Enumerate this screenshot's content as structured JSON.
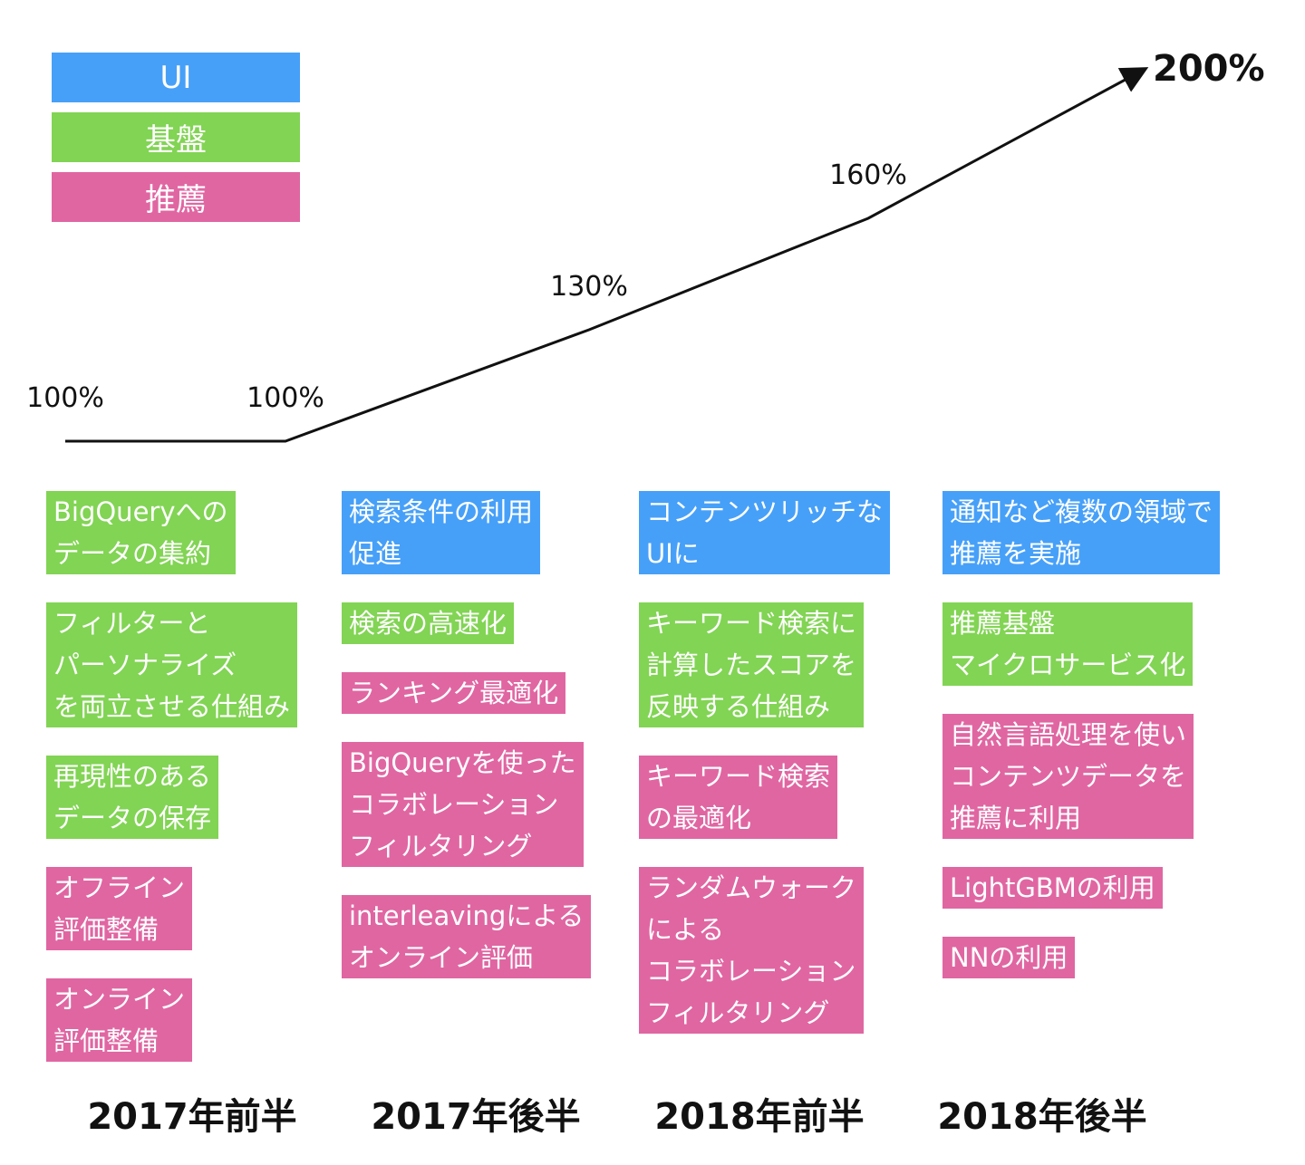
{
  "legend": [
    {
      "label": "UI",
      "color": "#47a0f8"
    },
    {
      "label": "基盤",
      "color": "#82d454"
    },
    {
      "label": "推薦",
      "color": "#e066a2"
    }
  ],
  "growth": {
    "type": "line",
    "values": [
      100,
      100,
      130,
      160,
      200
    ],
    "value_labels": [
      "100%",
      "100%",
      "130%",
      "160%",
      "200%"
    ]
  },
  "columns": [
    {
      "label": "2017年前半",
      "items": [
        {
          "lines": [
            "BigQueryへの",
            "データの集約"
          ],
          "color": "#82d454"
        },
        {
          "lines": [
            "フィルターと",
            "パーソナライズ",
            "を両立させる仕組み"
          ],
          "color": "#82d454"
        },
        {
          "lines": [
            "再現性のある",
            "データの保存"
          ],
          "color": "#82d454"
        },
        {
          "lines": [
            "オフライン",
            "評価整備"
          ],
          "color": "#e066a2"
        },
        {
          "lines": [
            "オンライン",
            "評価整備"
          ],
          "color": "#e066a2"
        }
      ]
    },
    {
      "label": "2017年後半",
      "items": [
        {
          "lines": [
            "検索条件の利用",
            "促進"
          ],
          "color": "#47a0f8"
        },
        {
          "lines": [
            "検索の高速化"
          ],
          "color": "#82d454"
        },
        {
          "lines": [
            "ランキング最適化"
          ],
          "color": "#e066a2"
        },
        {
          "lines": [
            "BigQueryを使った",
            "コラボレーション",
            "フィルタリング"
          ],
          "color": "#e066a2"
        },
        {
          "lines": [
            "interleavingによる",
            "オンライン評価"
          ],
          "color": "#e066a2"
        }
      ]
    },
    {
      "label": "2018年前半",
      "items": [
        {
          "lines": [
            "コンテンツリッチな",
            "UIに"
          ],
          "color": "#47a0f8"
        },
        {
          "lines": [
            "キーワード検索に",
            "計算したスコアを",
            "反映する仕組み"
          ],
          "color": "#82d454"
        },
        {
          "lines": [
            "キーワード検索",
            "の最適化"
          ],
          "color": "#e066a2"
        },
        {
          "lines": [
            "ランダムウォーク",
            "による",
            "コラボレーション",
            "フィルタリング"
          ],
          "color": "#e066a2"
        }
      ]
    },
    {
      "label": "2018年後半",
      "items": [
        {
          "lines": [
            "通知など複数の領域で",
            "推薦を実施"
          ],
          "color": "#47a0f8"
        },
        {
          "lines": [
            "推薦基盤",
            "マイクロサービス化"
          ],
          "color": "#82d454"
        },
        {
          "lines": [
            "自然言語処理を使い",
            "コンテンツデータを",
            "推薦に利用"
          ],
          "color": "#e066a2"
        },
        {
          "lines": [
            "LightGBMの利用"
          ],
          "color": "#e066a2"
        },
        {
          "lines": [
            "NNの利用"
          ],
          "color": "#e066a2"
        }
      ]
    }
  ]
}
